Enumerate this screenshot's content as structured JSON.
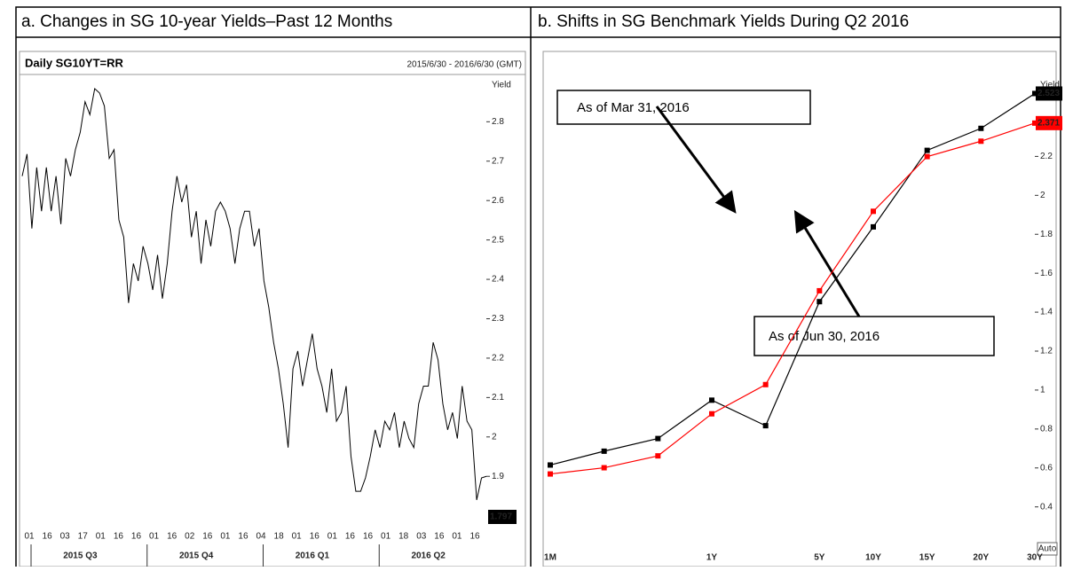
{
  "chart_data": [
    {
      "type": "line",
      "panel_title": "a. Changes in SG 10-year Yields–Past 12 Months",
      "title": "Daily SG10YT=RR",
      "subtitle": "2015/6/30 - 2016/6/30 (GMT)",
      "y_label": "Yield",
      "color": "#000000",
      "values": [
        2.662,
        2.718,
        2.529,
        2.684,
        2.573,
        2.684,
        2.573,
        2.662,
        2.54,
        2.707,
        2.662,
        2.729,
        2.773,
        2.851,
        2.818,
        2.884,
        2.873,
        2.84,
        2.707,
        2.729,
        2.551,
        2.507,
        2.34,
        2.44,
        2.396,
        2.484,
        2.44,
        2.373,
        2.462,
        2.351,
        2.44,
        2.573,
        2.662,
        2.596,
        2.64,
        2.507,
        2.573,
        2.44,
        2.551,
        2.484,
        2.573,
        2.596,
        2.573,
        2.529,
        2.44,
        2.529,
        2.573,
        2.573,
        2.484,
        2.529,
        2.396,
        2.329,
        2.24,
        2.173,
        2.084,
        1.973,
        2.173,
        2.218,
        2.129,
        2.196,
        2.262,
        2.173,
        2.129,
        2.062,
        2.173,
        2.04,
        2.062,
        2.129,
        1.951,
        1.862,
        1.862,
        1.896,
        1.951,
        2.018,
        1.973,
        2.04,
        2.018,
        2.062,
        1.973,
        2.04,
        1.996,
        1.973,
        2.084,
        2.129,
        2.129,
        2.24,
        2.196,
        2.084,
        2.018,
        2.062,
        1.996,
        2.129,
        2.04,
        2.018,
        1.84,
        1.896,
        1.9
      ],
      "last_value": 1.797,
      "ylim": [
        1.77,
        2.92
      ],
      "yticks": [
        1.9,
        2,
        2.1,
        2.2,
        2.3,
        2.4,
        2.5,
        2.6,
        2.7,
        2.8
      ],
      "x_tick_labels": [
        "01",
        "16",
        "03",
        "17",
        "01",
        "16",
        "16",
        "01",
        "16",
        "02",
        "16",
        "01",
        "16",
        "04",
        "18",
        "01",
        "16",
        "01",
        "16",
        "16",
        "01",
        "18",
        "03",
        "16",
        "01",
        "16"
      ],
      "x_group_labels": [
        "2015 Q3",
        "2015 Q4",
        "2016 Q1",
        "2016 Q2"
      ]
    },
    {
      "type": "line",
      "panel_title": "b. Shifts in SG Benchmark Yields During Q2 2016",
      "y_label": "Yield",
      "scale_note": "Auto",
      "categories": [
        "1M",
        null,
        null,
        "1Y",
        null,
        "5Y",
        "10Y",
        "15Y",
        "20Y",
        "30Y"
      ],
      "series": [
        {
          "name": "As of Jun 30, 2016",
          "color": "#000000",
          "values": [
            0.615,
            0.686,
            0.751,
            0.948,
            0.817,
            1.454,
            1.838,
            2.231,
            2.344,
            2.523
          ]
        },
        {
          "name": "As of Mar 31, 2016",
          "color": "#ff0000",
          "values": [
            0.569,
            0.601,
            0.662,
            0.878,
            1.028,
            1.51,
            1.918,
            2.199,
            2.278,
            2.371
          ]
        }
      ],
      "ylim": [
        0.18,
        2.73
      ],
      "yticks": [
        0.4,
        0.6,
        0.8,
        1,
        1.2,
        1.4,
        1.6,
        1.8,
        2,
        2.2
      ]
    }
  ]
}
